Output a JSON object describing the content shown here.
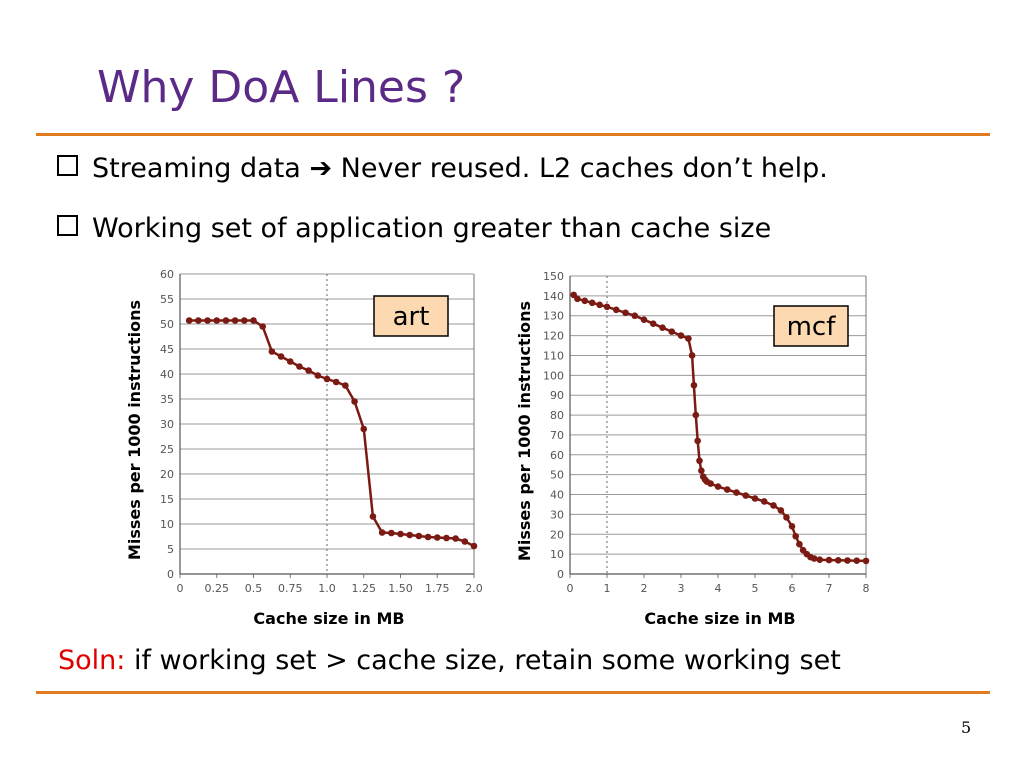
{
  "slide": {
    "title": "Why DoA Lines ?",
    "bullets": [
      {
        "before": "Streaming data",
        "arrow": "➔",
        "after": "Never reused. L2 caches don’t help."
      },
      {
        "text": "Working set of application greater than cache size"
      }
    ],
    "solution": {
      "label": "Soln:",
      "text": " if working set > cache size, retain some working set"
    },
    "page_number": "5"
  },
  "colors": {
    "title": "#5b2a86",
    "rule": "#e07b1f",
    "series": "#7a1a12",
    "solution_label": "#e00000",
    "tag_fill": "#fcd9b0"
  },
  "chart_data": [
    {
      "type": "line",
      "tag": "art",
      "xlabel": "Cache size in MB",
      "ylabel": "Misses per 1000 instructions",
      "xlim": [
        0,
        2.0
      ],
      "ylim": [
        0,
        60
      ],
      "xticks": [
        "0",
        "0.25",
        "0.5",
        "0.75",
        "1.0",
        "1.25",
        "1.50",
        "1.75",
        "2.0"
      ],
      "yticks": [
        "0",
        "5",
        "10",
        "15",
        "20",
        "25",
        "30",
        "35",
        "40",
        "45",
        "50",
        "55",
        "60"
      ],
      "reference_x": 1.0,
      "grid": true,
      "series": [
        {
          "x": [
            0.0625,
            0.125,
            0.1875,
            0.25,
            0.3125,
            0.375,
            0.4375,
            0.5,
            0.5625,
            0.625,
            0.6875,
            0.75,
            0.8125,
            0.875,
            0.9375,
            1.0,
            1.0625,
            1.125,
            1.1875,
            1.25,
            1.3125,
            1.375,
            1.4375,
            1.5,
            1.5625,
            1.625,
            1.6875,
            1.75,
            1.8125,
            1.875,
            1.9375,
            2.0
          ],
          "y": [
            50.7,
            50.7,
            50.7,
            50.7,
            50.7,
            50.7,
            50.7,
            50.7,
            49.5,
            44.5,
            43.5,
            42.5,
            41.5,
            40.7,
            39.7,
            39.0,
            38.4,
            37.7,
            34.5,
            29.0,
            11.5,
            8.3,
            8.2,
            8.0,
            7.8,
            7.6,
            7.4,
            7.3,
            7.2,
            7.1,
            6.5,
            5.6
          ]
        }
      ]
    },
    {
      "type": "line",
      "tag": "mcf",
      "xlabel": "Cache size in MB",
      "ylabel": "Misses per 1000 instructions",
      "xlim": [
        0,
        8
      ],
      "ylim": [
        0,
        150
      ],
      "xticks": [
        "0",
        "1",
        "2",
        "3",
        "4",
        "5",
        "6",
        "7",
        "8"
      ],
      "yticks": [
        "0",
        "10",
        "20",
        "30",
        "40",
        "50",
        "60",
        "70",
        "80",
        "90",
        "100",
        "110",
        "120",
        "130",
        "140",
        "150"
      ],
      "reference_x": 1,
      "grid": true,
      "series": [
        {
          "x": [
            0.1,
            0.2,
            0.4,
            0.6,
            0.8,
            1.0,
            1.25,
            1.5,
            1.75,
            2.0,
            2.25,
            2.5,
            2.75,
            3.0,
            3.2,
            3.3,
            3.35,
            3.4,
            3.45,
            3.5,
            3.55,
            3.6,
            3.65,
            3.7,
            3.8,
            4.0,
            4.25,
            4.5,
            4.75,
            5.0,
            5.25,
            5.5,
            5.7,
            5.85,
            6.0,
            6.1,
            6.2,
            6.3,
            6.4,
            6.5,
            6.6,
            6.75,
            7.0,
            7.25,
            7.5,
            7.75,
            8.0
          ],
          "y": [
            140.5,
            138.5,
            137.5,
            136.5,
            135.5,
            134.5,
            133.0,
            131.5,
            130.0,
            128.0,
            126.0,
            124.0,
            122.0,
            120.0,
            118.5,
            110.0,
            95.0,
            80.0,
            67.0,
            57.0,
            52.0,
            49.0,
            47.5,
            46.5,
            45.5,
            44.0,
            42.5,
            41.0,
            39.5,
            38.0,
            36.5,
            34.5,
            32.0,
            28.5,
            24.0,
            19.0,
            15.0,
            12.0,
            10.0,
            8.5,
            7.8,
            7.2,
            7.0,
            6.9,
            6.8,
            6.7,
            6.6
          ]
        }
      ]
    }
  ]
}
